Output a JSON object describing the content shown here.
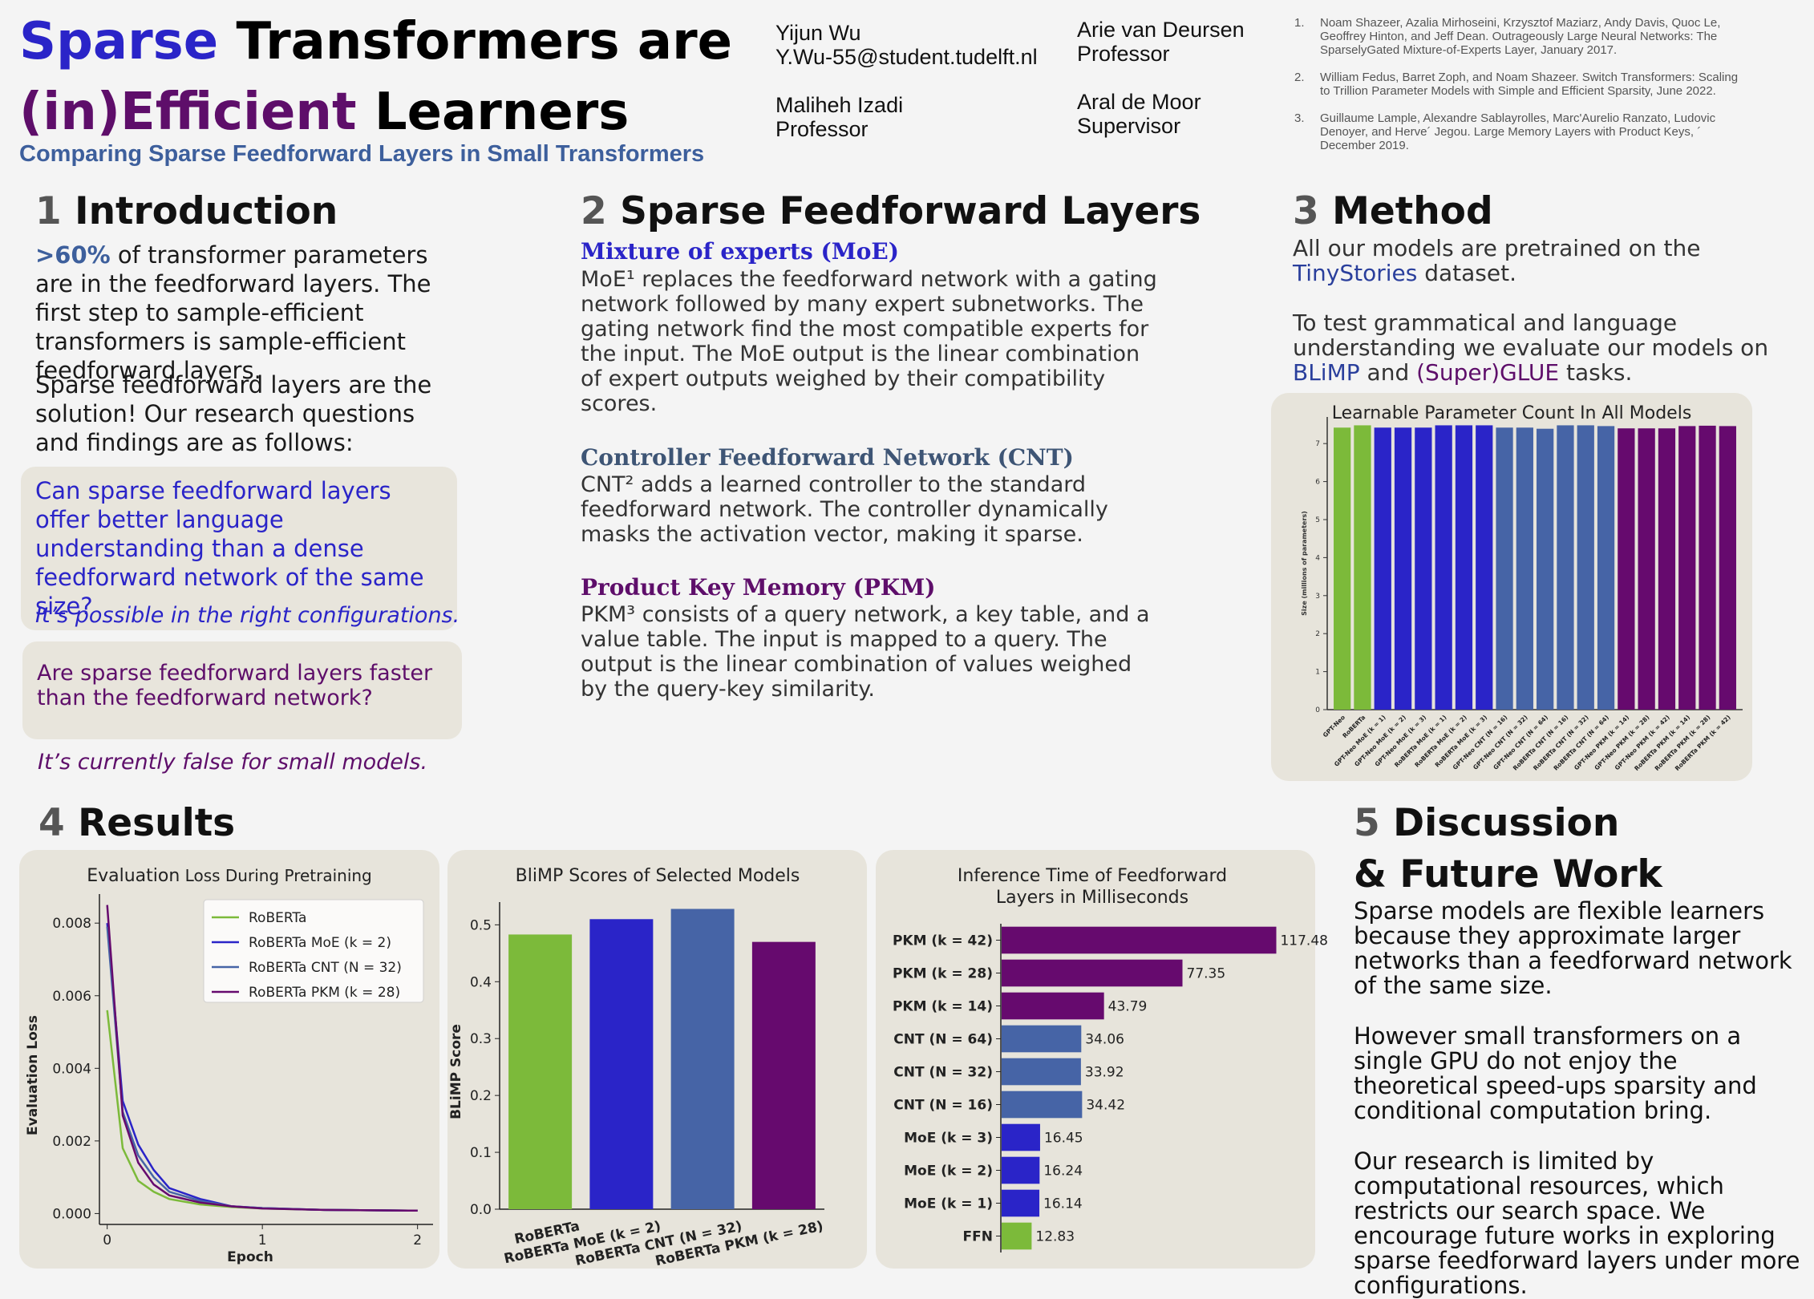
{
  "title": {
    "line1_part1": "Sparse",
    "line1_part2": "Transformers are",
    "line2_part1": "(in)Efficient",
    "line2_part2": "Learners",
    "subtitle": "Comparing Sparse Feedforward Layers in Small Transformers"
  },
  "authors": [
    {
      "name": "Yijun Wu",
      "detail": "Y.Wu-55@student.tudelft.nl"
    },
    {
      "name": "Arie van Deursen",
      "detail": "Professor"
    },
    {
      "name": "Maliheh Izadi",
      "detail": "Professor"
    },
    {
      "name": "Aral de Moor",
      "detail": "Supervisor"
    }
  ],
  "references": [
    {
      "num": "1.",
      "text": "Noam Shazeer, Azalia Mirhoseini, Krzysztof Maziarz, Andy Davis, Quoc Le, Geoffrey Hinton, and Jeff Dean. Outrageously Large Neural Networks: The SparselyGated Mixture-of-Experts Layer, January 2017."
    },
    {
      "num": "2.",
      "text": "William Fedus, Barret Zoph, and Noam Shazeer. Switch Transformers: Scaling to Trillion Parameter Models with Simple and Efficient Sparsity, June 2022."
    },
    {
      "num": "3.",
      "text": "Guillaume Lample, Alexandre Sablayrolles, Marc'Aurelio Ranzato, Ludovic Denoyer, and Herve´ Jegou. Large Memory Layers with Product Keys, ´ December 2019."
    }
  ],
  "intro": {
    "num": "1",
    "heading": "Introduction",
    "highlight": ">60%",
    "p1_rest": " of transformer parameters are in the feedforward layers. The first step to sample-efficient transformers is sample-efficient feedforward layers.",
    "p2": "Sparse feedforward layers are the solution! Our research questions and findings are as follows:",
    "q1": "Can sparse feedforward layers offer better language understanding than a dense feedforward network of the same size?",
    "a1": "It’s possible in the right configurations.",
    "q2": "Are sparse feedforward layers faster than the feedforward network?",
    "a2": "It’s currently false for small models."
  },
  "sparse": {
    "num": "2",
    "heading": "Sparse Feedforward Layers",
    "moe_head": "Mixture of experts (MoE)",
    "moe_text": "MoE¹ replaces the feedforward network with a gating network followed by many expert subnetworks. The gating network find the most compatible experts for the input. The MoE output is the linear combination of expert outputs weighed by their compatibility scores.",
    "cnt_head": "Controller Feedforward Network (CNT)",
    "cnt_text": "CNT² adds a learned controller to the standard feedforward network. The controller dynamically masks the activation vector, making it sparse.",
    "pkm_head": "Product Key Memory (PKM)",
    "pkm_text": "PKM³ consists of a query network, a key table, and a value table. The input is mapped to a query. The output is the linear combination of values weighed by the query-key similarity."
  },
  "method": {
    "num": "3",
    "heading": "Method",
    "p1_a": "All our models are pretrained on the ",
    "p1_link": "TinyStories",
    "p1_b": " dataset.",
    "p2_a": "To test grammatical and language understanding we evaluate our models on ",
    "p2_link1": "BLiMP",
    "p2_mid": " and ",
    "p2_link2": "(Super)GLUE",
    "p2_b": " tasks."
  },
  "results": {
    "num": "4",
    "heading": "Results"
  },
  "discussion": {
    "num": "5",
    "heading1": "Discussion",
    "heading2": "& Future Work",
    "p1": "Sparse models are flexible learners because they approximate larger networks than a feedforward network of the same size.",
    "p2": "However small transformers on a single GPU do not enjoy the theoretical speed-ups sparsity and conditional computation bring.",
    "p3": "Our research is limited by computational resources, which restricts our search space. We encourage future works in exploring sparse feedforward layers under more configurations."
  },
  "colors": {
    "green": "#7cba3a",
    "blue": "#2a24c8",
    "slate": "#4664a6",
    "purple": "#660a6e"
  },
  "chart_data": [
    {
      "type": "bar",
      "title": "Learnable Parameter Count In All Models",
      "ylabel": "Size (millions of parameters)",
      "ylim": [
        0,
        7.7
      ],
      "yticks": [
        0,
        1,
        2,
        3,
        4,
        5,
        6,
        7
      ],
      "categories": [
        "GPT-Neo",
        "RoBERTa",
        "GPT-Neo MoE (k = 1)",
        "GPT-Neo MoE (k = 2)",
        "GPT-Neo MoE (k = 3)",
        "RoBERTa MoE (k = 1)",
        "RoBERTa MoE (k = 2)",
        "RoBERTa MoE (k = 3)",
        "GPT-Neo CNT (N = 16)",
        "GPT-Neo CNT (N = 32)",
        "GPT-Neo CNT (N = 64)",
        "RoBERTa CNT (N = 16)",
        "RoBERTa CNT (N = 32)",
        "RoBERTa CNT (N = 64)",
        "GPT-Neo PKM (k = 14)",
        "GPT-Neo PKM (k = 28)",
        "GPT-Neo PKM (k = 42)",
        "RoBERTa PKM (k = 14)",
        "RoBERTa PKM (k = 28)",
        "RoBERTa PKM (k = 42)"
      ],
      "values": [
        7.42,
        7.48,
        7.42,
        7.42,
        7.42,
        7.48,
        7.48,
        7.48,
        7.42,
        7.42,
        7.39,
        7.48,
        7.48,
        7.46,
        7.4,
        7.4,
        7.4,
        7.46,
        7.47,
        7.46
      ],
      "colors": [
        "#7cba3a",
        "#7cba3a",
        "#2a24c8",
        "#2a24c8",
        "#2a24c8",
        "#2a24c8",
        "#2a24c8",
        "#2a24c8",
        "#4664a6",
        "#4664a6",
        "#4664a6",
        "#4664a6",
        "#4664a6",
        "#4664a6",
        "#660a6e",
        "#660a6e",
        "#660a6e",
        "#660a6e",
        "#660a6e",
        "#660a6e"
      ]
    },
    {
      "type": "line",
      "title_a": "Evaluation",
      "title_b": " Loss During Pretraining",
      "xlabel": "Epoch",
      "ylabel": "Evaluation Loss",
      "xlim": [
        -0.05,
        2.1
      ],
      "ylim": [
        -0.0003,
        0.0088
      ],
      "xticks": [
        0,
        1,
        2
      ],
      "yticks": [
        0.0,
        0.002,
        0.004,
        0.006,
        0.008
      ],
      "ytick_labels": [
        "0.000",
        "0.002",
        "0.004",
        "0.006",
        "0.008"
      ],
      "legend": "top-right",
      "x": [
        0,
        0.1,
        0.2,
        0.3,
        0.4,
        0.6,
        0.8,
        1.0,
        1.4,
        2.0
      ],
      "series": [
        {
          "name": "RoBERTa",
          "color": "#7cba3a",
          "values": [
            0.0056,
            0.0018,
            0.0009,
            0.0006,
            0.0004,
            0.00025,
            0.00018,
            0.00014,
            0.0001,
            8e-05
          ]
        },
        {
          "name": "RoBERTa MoE (k = 2)",
          "color": "#2a24c8",
          "values": [
            0.008,
            0.0031,
            0.0019,
            0.0012,
            0.0007,
            0.0004,
            0.0002,
            0.00015,
            0.0001,
            8e-05
          ]
        },
        {
          "name": "RoBERTa CNT (N = 32)",
          "color": "#4664a6",
          "values": [
            0.0079,
            0.0028,
            0.0016,
            0.001,
            0.0006,
            0.00035,
            0.0002,
            0.00015,
            0.0001,
            8e-05
          ]
        },
        {
          "name": "RoBERTa PKM (k = 28)",
          "color": "#660a6e",
          "values": [
            0.0085,
            0.0027,
            0.0014,
            0.0008,
            0.0005,
            0.0003,
            0.0002,
            0.00014,
            0.0001,
            8e-05
          ]
        }
      ]
    },
    {
      "type": "bar",
      "title": "BliMP Scores of Selected Models",
      "ylabel": "BLiMP Score",
      "ylim": [
        0,
        0.54
      ],
      "yticks": [
        0.0,
        0.1,
        0.2,
        0.3,
        0.4,
        0.5
      ],
      "ytick_labels": [
        "0.0",
        "0.1",
        "0.2",
        "0.3",
        "0.4",
        "0.5"
      ],
      "categories": [
        "RoBERTa",
        "RoBERTa MoE (k = 2)",
        "RoBERTa CNT (N = 32)",
        "RoBERTa PKM (k = 28)"
      ],
      "values": [
        0.483,
        0.51,
        0.528,
        0.47
      ],
      "colors": [
        "#7cba3a",
        "#2a24c8",
        "#4664a6",
        "#660a6e"
      ]
    },
    {
      "type": "bar",
      "orientation": "horizontal",
      "title_line1": "Inference Time of Feedforward",
      "title_line2": "Layers in Milliseconds",
      "xlim": [
        0,
        130
      ],
      "categories": [
        "PKM (k = 42)",
        "PKM (k = 28)",
        "PKM (k = 14)",
        "CNT (N = 64)",
        "CNT (N = 32)",
        "CNT (N = 16)",
        "MoE (k = 3)",
        "MoE (k = 2)",
        "MoE (k = 1)",
        "FFN"
      ],
      "values": [
        117.48,
        77.35,
        43.79,
        34.06,
        33.92,
        34.42,
        16.45,
        16.24,
        16.14,
        12.83
      ],
      "value_labels": [
        "117.48",
        "77.35",
        "43.79",
        "34.06",
        "33.92",
        "34.42",
        "16.45",
        "16.24",
        "16.14",
        "12.83"
      ],
      "colors": [
        "#660a6e",
        "#660a6e",
        "#660a6e",
        "#4664a6",
        "#4664a6",
        "#4664a6",
        "#2a24c8",
        "#2a24c8",
        "#2a24c8",
        "#7cba3a"
      ]
    }
  ]
}
